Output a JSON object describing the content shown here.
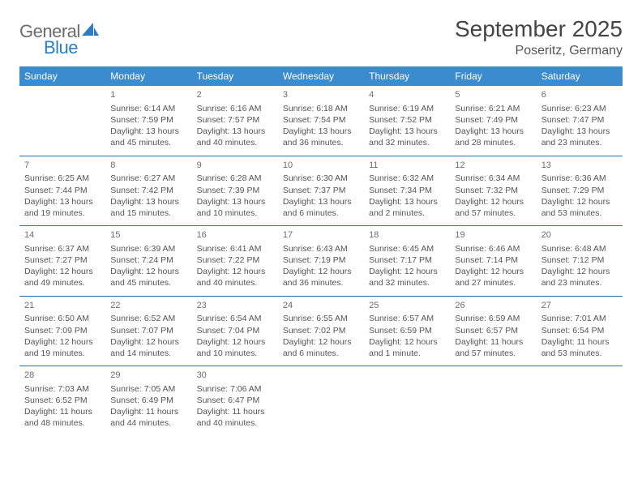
{
  "logo": {
    "general": "General",
    "blue": "Blue"
  },
  "title": "September 2025",
  "location": "Poseritz, Germany",
  "colors": {
    "header_bg": "#3b8bcf",
    "header_fg": "#ffffff",
    "rule": "#2d6fa8",
    "text": "#555555",
    "title": "#444444",
    "logo_gray": "#6b6b6b",
    "logo_blue": "#2d7dc4"
  },
  "weekdays": [
    "Sunday",
    "Monday",
    "Tuesday",
    "Wednesday",
    "Thursday",
    "Friday",
    "Saturday"
  ],
  "weeks": [
    [
      null,
      {
        "n": "1",
        "sr": "Sunrise: 6:14 AM",
        "ss": "Sunset: 7:59 PM",
        "d1": "Daylight: 13 hours",
        "d2": "and 45 minutes."
      },
      {
        "n": "2",
        "sr": "Sunrise: 6:16 AM",
        "ss": "Sunset: 7:57 PM",
        "d1": "Daylight: 13 hours",
        "d2": "and 40 minutes."
      },
      {
        "n": "3",
        "sr": "Sunrise: 6:18 AM",
        "ss": "Sunset: 7:54 PM",
        "d1": "Daylight: 13 hours",
        "d2": "and 36 minutes."
      },
      {
        "n": "4",
        "sr": "Sunrise: 6:19 AM",
        "ss": "Sunset: 7:52 PM",
        "d1": "Daylight: 13 hours",
        "d2": "and 32 minutes."
      },
      {
        "n": "5",
        "sr": "Sunrise: 6:21 AM",
        "ss": "Sunset: 7:49 PM",
        "d1": "Daylight: 13 hours",
        "d2": "and 28 minutes."
      },
      {
        "n": "6",
        "sr": "Sunrise: 6:23 AM",
        "ss": "Sunset: 7:47 PM",
        "d1": "Daylight: 13 hours",
        "d2": "and 23 minutes."
      }
    ],
    [
      {
        "n": "7",
        "sr": "Sunrise: 6:25 AM",
        "ss": "Sunset: 7:44 PM",
        "d1": "Daylight: 13 hours",
        "d2": "and 19 minutes."
      },
      {
        "n": "8",
        "sr": "Sunrise: 6:27 AM",
        "ss": "Sunset: 7:42 PM",
        "d1": "Daylight: 13 hours",
        "d2": "and 15 minutes."
      },
      {
        "n": "9",
        "sr": "Sunrise: 6:28 AM",
        "ss": "Sunset: 7:39 PM",
        "d1": "Daylight: 13 hours",
        "d2": "and 10 minutes."
      },
      {
        "n": "10",
        "sr": "Sunrise: 6:30 AM",
        "ss": "Sunset: 7:37 PM",
        "d1": "Daylight: 13 hours",
        "d2": "and 6 minutes."
      },
      {
        "n": "11",
        "sr": "Sunrise: 6:32 AM",
        "ss": "Sunset: 7:34 PM",
        "d1": "Daylight: 13 hours",
        "d2": "and 2 minutes."
      },
      {
        "n": "12",
        "sr": "Sunrise: 6:34 AM",
        "ss": "Sunset: 7:32 PM",
        "d1": "Daylight: 12 hours",
        "d2": "and 57 minutes."
      },
      {
        "n": "13",
        "sr": "Sunrise: 6:36 AM",
        "ss": "Sunset: 7:29 PM",
        "d1": "Daylight: 12 hours",
        "d2": "and 53 minutes."
      }
    ],
    [
      {
        "n": "14",
        "sr": "Sunrise: 6:37 AM",
        "ss": "Sunset: 7:27 PM",
        "d1": "Daylight: 12 hours",
        "d2": "and 49 minutes."
      },
      {
        "n": "15",
        "sr": "Sunrise: 6:39 AM",
        "ss": "Sunset: 7:24 PM",
        "d1": "Daylight: 12 hours",
        "d2": "and 45 minutes."
      },
      {
        "n": "16",
        "sr": "Sunrise: 6:41 AM",
        "ss": "Sunset: 7:22 PM",
        "d1": "Daylight: 12 hours",
        "d2": "and 40 minutes."
      },
      {
        "n": "17",
        "sr": "Sunrise: 6:43 AM",
        "ss": "Sunset: 7:19 PM",
        "d1": "Daylight: 12 hours",
        "d2": "and 36 minutes."
      },
      {
        "n": "18",
        "sr": "Sunrise: 6:45 AM",
        "ss": "Sunset: 7:17 PM",
        "d1": "Daylight: 12 hours",
        "d2": "and 32 minutes."
      },
      {
        "n": "19",
        "sr": "Sunrise: 6:46 AM",
        "ss": "Sunset: 7:14 PM",
        "d1": "Daylight: 12 hours",
        "d2": "and 27 minutes."
      },
      {
        "n": "20",
        "sr": "Sunrise: 6:48 AM",
        "ss": "Sunset: 7:12 PM",
        "d1": "Daylight: 12 hours",
        "d2": "and 23 minutes."
      }
    ],
    [
      {
        "n": "21",
        "sr": "Sunrise: 6:50 AM",
        "ss": "Sunset: 7:09 PM",
        "d1": "Daylight: 12 hours",
        "d2": "and 19 minutes."
      },
      {
        "n": "22",
        "sr": "Sunrise: 6:52 AM",
        "ss": "Sunset: 7:07 PM",
        "d1": "Daylight: 12 hours",
        "d2": "and 14 minutes."
      },
      {
        "n": "23",
        "sr": "Sunrise: 6:54 AM",
        "ss": "Sunset: 7:04 PM",
        "d1": "Daylight: 12 hours",
        "d2": "and 10 minutes."
      },
      {
        "n": "24",
        "sr": "Sunrise: 6:55 AM",
        "ss": "Sunset: 7:02 PM",
        "d1": "Daylight: 12 hours",
        "d2": "and 6 minutes."
      },
      {
        "n": "25",
        "sr": "Sunrise: 6:57 AM",
        "ss": "Sunset: 6:59 PM",
        "d1": "Daylight: 12 hours",
        "d2": "and 1 minute."
      },
      {
        "n": "26",
        "sr": "Sunrise: 6:59 AM",
        "ss": "Sunset: 6:57 PM",
        "d1": "Daylight: 11 hours",
        "d2": "and 57 minutes."
      },
      {
        "n": "27",
        "sr": "Sunrise: 7:01 AM",
        "ss": "Sunset: 6:54 PM",
        "d1": "Daylight: 11 hours",
        "d2": "and 53 minutes."
      }
    ],
    [
      {
        "n": "28",
        "sr": "Sunrise: 7:03 AM",
        "ss": "Sunset: 6:52 PM",
        "d1": "Daylight: 11 hours",
        "d2": "and 48 minutes."
      },
      {
        "n": "29",
        "sr": "Sunrise: 7:05 AM",
        "ss": "Sunset: 6:49 PM",
        "d1": "Daylight: 11 hours",
        "d2": "and 44 minutes."
      },
      {
        "n": "30",
        "sr": "Sunrise: 7:06 AM",
        "ss": "Sunset: 6:47 PM",
        "d1": "Daylight: 11 hours",
        "d2": "and 40 minutes."
      },
      null,
      null,
      null,
      null
    ]
  ]
}
